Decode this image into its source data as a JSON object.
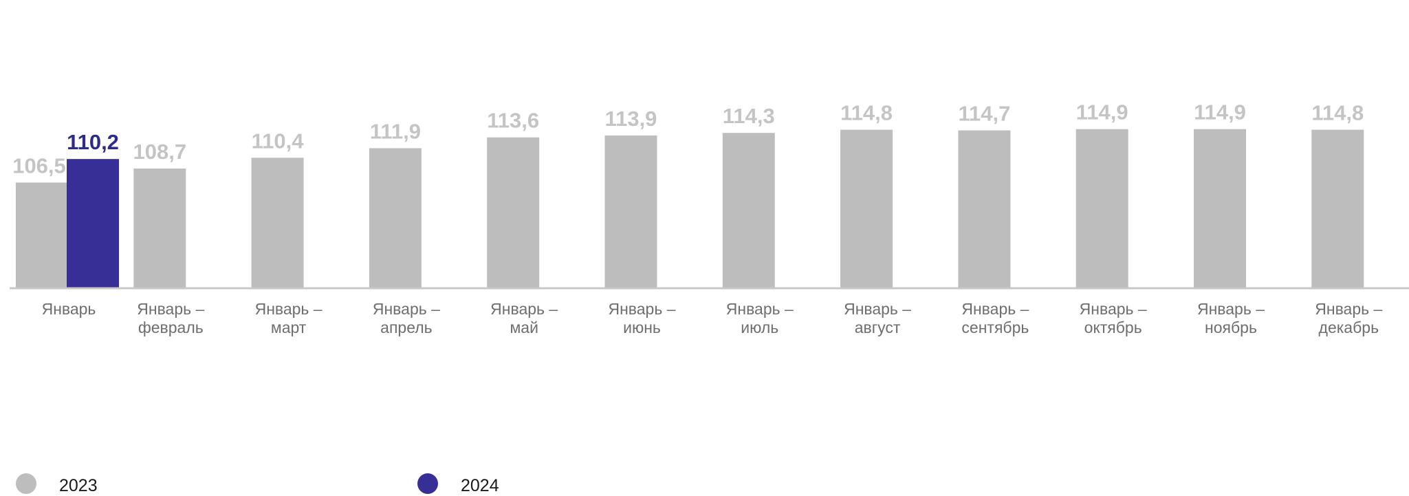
{
  "colors": {
    "series_2023": "#bdbdbd",
    "series_2024": "#372f96",
    "label_2023": "#c4c4c4",
    "label_2024": "#2e2a8c",
    "axis": "#c8c8c8"
  },
  "chart_data": {
    "type": "bar",
    "title": "",
    "xlabel": "",
    "ylabel": "",
    "ylim": [
      90,
      117
    ],
    "grid": false,
    "legend_position": "bottom-left",
    "categories": [
      [
        "Январь"
      ],
      [
        "Январь –",
        "февраль"
      ],
      [
        "Январь –",
        "март"
      ],
      [
        "Январь –",
        "апрель"
      ],
      [
        "Январь –",
        "май"
      ],
      [
        "Январь –",
        "июнь"
      ],
      [
        "Январь –",
        "июль"
      ],
      [
        "Январь –",
        "август"
      ],
      [
        "Январь –",
        "сентябрь"
      ],
      [
        "Январь –",
        "октябрь"
      ],
      [
        "Январь –",
        "ноябрь"
      ],
      [
        "Январь –",
        "декабрь"
      ]
    ],
    "series": [
      {
        "name": "2023",
        "values": [
          106.5,
          108.7,
          110.4,
          111.9,
          113.6,
          113.9,
          114.3,
          114.8,
          114.7,
          114.9,
          114.9,
          114.8
        ],
        "labels": [
          "106,5",
          "108,7",
          "110,4",
          "111,9",
          "113,6",
          "113,9",
          "114,3",
          "114,8",
          "114,7",
          "114,9",
          "114,9",
          "114,8"
        ]
      },
      {
        "name": "2024",
        "values": [
          110.2,
          null,
          null,
          null,
          null,
          null,
          null,
          null,
          null,
          null,
          null,
          null
        ],
        "labels": [
          "110,2",
          "",
          "",
          "",
          "",
          "",
          "",
          "",
          "",
          "",
          "",
          ""
        ]
      }
    ]
  }
}
